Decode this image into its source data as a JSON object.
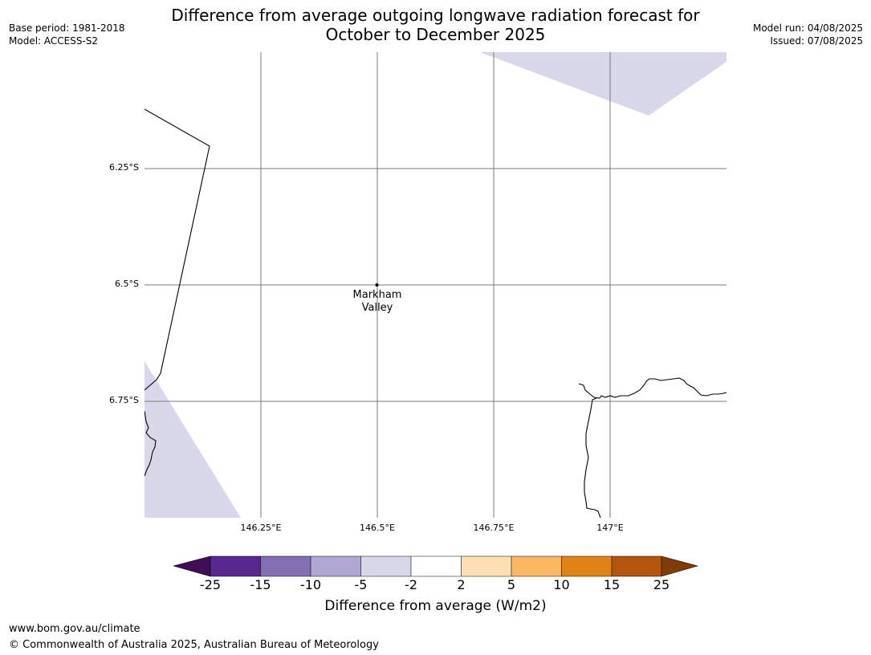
{
  "header": {
    "title_line1": "Difference from average outgoing longwave radiation forecast for",
    "title_line2": "October to December 2025",
    "base_period": "Base period: 1981-2018",
    "model": "Model: ACCESS-S2",
    "model_run": "Model run: 04/08/2025",
    "issued": "Issued: 07/08/2025"
  },
  "map": {
    "lat_labels": [
      "6.25°S",
      "6.5°S",
      "6.75°S"
    ],
    "lon_labels": [
      "146.25°E",
      "146.5°E",
      "146.75°E",
      "147°E"
    ],
    "place": {
      "name_line1": "Markham",
      "name_line2": "Valley"
    },
    "shading_color": "#d8d8ea",
    "coastline_color": "#000000"
  },
  "colorbar": {
    "tick_labels": [
      "-25",
      "-15",
      "-10",
      "-5",
      "-2",
      "2",
      "5",
      "10",
      "15",
      "25"
    ],
    "colors": [
      "#3f0e56",
      "#5a2690",
      "#8270b2",
      "#b0a8d2",
      "#d8d8ea",
      "#ffffff",
      "#fedeb2",
      "#fbb863",
      "#e08316",
      "#b4560b",
      "#7f3b08"
    ],
    "label": "Difference from average (W/m2)"
  },
  "footer": {
    "url": "www.bom.gov.au/climate",
    "copyright": "© Commonwealth of Australia 2025, Australian Bureau of Meteorology"
  }
}
